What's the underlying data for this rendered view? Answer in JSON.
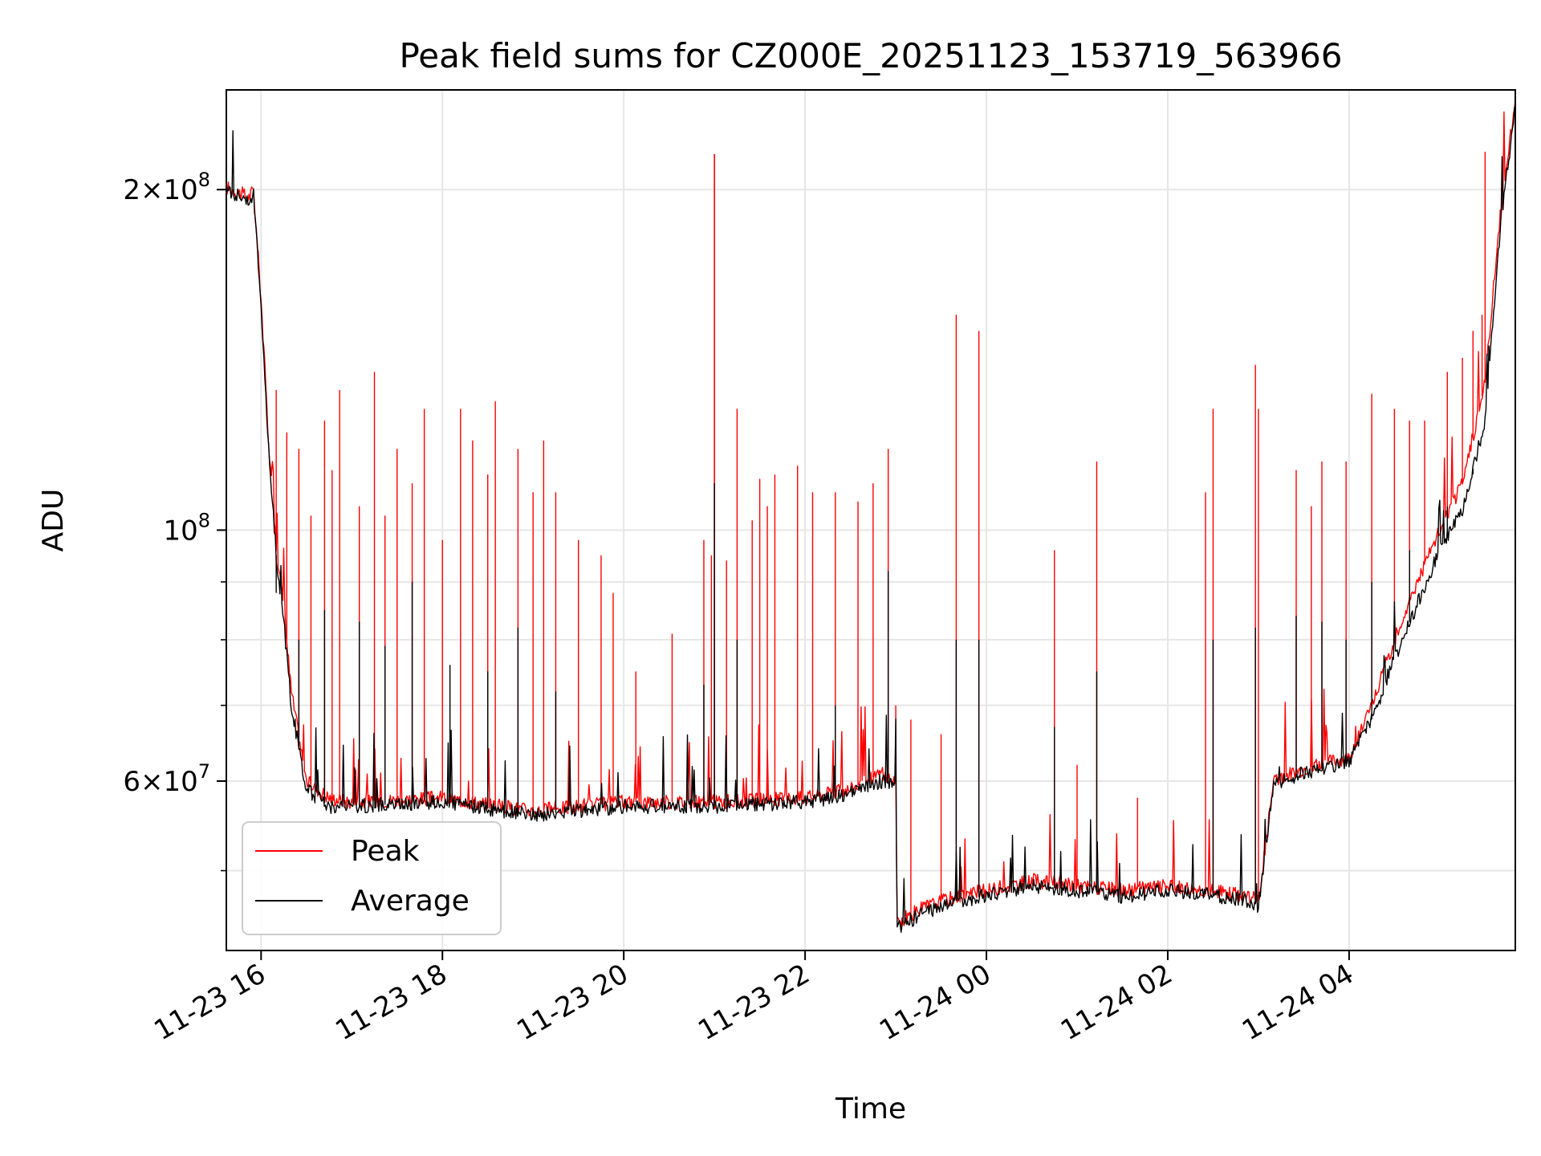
{
  "chart_data": {
    "type": "line",
    "title": "Peak field sums for CZ000E_20251123_153719_563966",
    "xlabel": "Time",
    "ylabel": "ADU",
    "yscale": "log",
    "grid": true,
    "legend_location": "lower-left",
    "xlim": [
      "2025-11-23T15:37",
      "2025-11-24T05:50"
    ],
    "ylim": [
      42500000,
      245000000
    ],
    "x_ticks": [
      "2025-11-23T16:00",
      "2025-11-23T18:00",
      "2025-11-23T20:00",
      "2025-11-23T22:00",
      "2025-11-24T00:00",
      "2025-11-24T02:00",
      "2025-11-24T04:00"
    ],
    "x_tick_labels": [
      "11-23 16",
      "11-23 18",
      "11-23 20",
      "11-23 22",
      "11-24 00",
      "11-24 02",
      "11-24 04"
    ],
    "y_major_ticks": [
      60000000,
      100000000,
      200000000
    ],
    "y_tick_labels": [
      {
        "mantissa": "6",
        "exponent": "7"
      },
      {
        "mantissa": "",
        "exponent": "8"
      },
      {
        "mantissa": "2",
        "exponent": "8"
      }
    ],
    "y_minor_ticks": [
      50000000,
      70000000,
      80000000,
      90000000
    ],
    "series": [
      {
        "name": "Peak",
        "color": "#ff0000",
        "x": [
          "2025-11-23T15:37",
          "2025-11-23T15:52",
          "2025-11-23T15:55",
          "2025-11-23T16:00",
          "2025-11-23T16:05",
          "2025-11-23T16:10",
          "2025-11-23T16:15",
          "2025-11-23T16:20",
          "2025-11-23T16:30",
          "2025-11-23T16:45",
          "2025-11-23T17:00",
          "2025-11-23T18:00",
          "2025-11-23T19:00",
          "2025-11-23T20:00",
          "2025-11-23T21:00",
          "2025-11-23T22:00",
          "2025-11-23T22:30",
          "2025-11-23T22:50",
          "2025-11-23T23:00",
          "2025-11-23T23:01",
          "2025-11-23T23:20",
          "2025-11-23T23:40",
          "2025-11-24T00:00",
          "2025-11-24T00:30",
          "2025-11-24T01:00",
          "2025-11-24T01:30",
          "2025-11-24T02:00",
          "2025-11-24T02:30",
          "2025-11-24T02:55",
          "2025-11-24T03:00",
          "2025-11-24T03:10",
          "2025-11-24T03:30",
          "2025-11-24T04:00",
          "2025-11-24T04:15",
          "2025-11-24T04:30",
          "2025-11-24T04:45",
          "2025-11-24T05:00",
          "2025-11-24T05:15",
          "2025-11-24T05:30",
          "2025-11-24T05:40",
          "2025-11-24T05:50"
        ],
        "y": [
          201000000,
          197000000,
          200000000,
          160000000,
          120000000,
          97000000,
          85000000,
          72000000,
          60000000,
          58000000,
          57500000,
          58000000,
          56500000,
          57500000,
          57500000,
          58000000,
          59000000,
          61000000,
          60000000,
          45000000,
          46500000,
          47500000,
          48000000,
          49000000,
          48500000,
          48000000,
          48500000,
          48000000,
          47500000,
          47000000,
          60000000,
          61500000,
          63000000,
          70000000,
          80000000,
          90000000,
          100000000,
          110000000,
          135000000,
          190000000,
          240000000
        ],
        "spikes": [
          [
            "2025-11-23T16:10",
            133000000
          ],
          [
            "2025-11-23T16:17",
            122000000
          ],
          [
            "2025-11-23T16:25",
            118000000
          ],
          [
            "2025-11-23T16:33",
            103000000
          ],
          [
            "2025-11-23T16:42",
            125000000
          ],
          [
            "2025-11-23T16:47",
            113000000
          ],
          [
            "2025-11-23T16:52",
            133000000
          ],
          [
            "2025-11-23T17:05",
            105000000
          ],
          [
            "2025-11-23T17:15",
            138000000
          ],
          [
            "2025-11-23T17:22",
            103000000
          ],
          [
            "2025-11-23T17:30",
            118000000
          ],
          [
            "2025-11-23T17:40",
            110000000
          ],
          [
            "2025-11-23T17:48",
            128000000
          ],
          [
            "2025-11-23T18:00",
            98000000
          ],
          [
            "2025-11-23T18:12",
            128000000
          ],
          [
            "2025-11-23T18:20",
            120000000
          ],
          [
            "2025-11-23T18:30",
            112000000
          ],
          [
            "2025-11-23T18:35",
            130000000
          ],
          [
            "2025-11-23T18:50",
            118000000
          ],
          [
            "2025-11-23T19:00",
            108000000
          ],
          [
            "2025-11-23T19:07",
            120000000
          ],
          [
            "2025-11-23T19:15",
            108000000
          ],
          [
            "2025-11-23T19:30",
            98000000
          ],
          [
            "2025-11-23T19:45",
            95000000
          ],
          [
            "2025-11-23T19:53",
            88000000
          ],
          [
            "2025-11-23T20:08",
            75000000
          ],
          [
            "2025-11-23T20:32",
            81000000
          ],
          [
            "2025-11-23T20:53",
            98000000
          ],
          [
            "2025-11-23T20:58",
            95000000
          ],
          [
            "2025-11-23T21:08",
            94000000
          ],
          [
            "2025-11-23T21:15",
            128000000
          ],
          [
            "2025-11-23T21:25",
            102000000
          ],
          [
            "2025-11-23T21:30",
            111000000
          ],
          [
            "2025-11-23T21:35",
            105000000
          ],
          [
            "2025-11-23T21:40",
            112000000
          ],
          [
            "2025-11-23T21:55",
            114000000
          ],
          [
            "2025-11-23T22:05",
            108000000
          ],
          [
            "2025-11-23T22:20",
            108000000
          ],
          [
            "2025-11-23T22:35",
            106000000
          ],
          [
            "2025-11-23T22:45",
            110000000
          ],
          [
            "2025-11-23T22:55",
            118000000
          ],
          [
            "2025-11-23T23:00",
            70000000
          ],
          [
            "2025-11-23T23:10",
            68000000
          ],
          [
            "2025-11-23T23:30",
            66000000
          ],
          [
            "2025-11-23T23:40",
            155000000
          ],
          [
            "2025-11-23T23:55",
            150000000
          ],
          [
            "2025-11-24T00:45",
            96000000
          ],
          [
            "2025-11-24T01:00",
            62000000
          ],
          [
            "2025-11-24T01:13",
            115000000
          ],
          [
            "2025-11-24T01:40",
            58000000
          ],
          [
            "2025-11-24T02:25",
            108000000
          ],
          [
            "2025-11-24T02:30",
            128000000
          ],
          [
            "2025-11-24T02:58",
            140000000
          ],
          [
            "2025-11-24T03:00",
            128000000
          ],
          [
            "2025-11-24T03:25",
            113000000
          ],
          [
            "2025-11-24T03:35",
            105000000
          ],
          [
            "2025-11-24T03:42",
            115000000
          ],
          [
            "2025-11-24T03:58",
            115000000
          ],
          [
            "2025-11-24T04:15",
            132000000
          ],
          [
            "2025-11-24T04:30",
            128000000
          ],
          [
            "2025-11-24T04:40",
            125000000
          ],
          [
            "2025-11-24T04:50",
            125000000
          ],
          [
            "2025-11-24T05:05",
            138000000
          ],
          [
            "2025-11-24T05:15",
            142000000
          ],
          [
            "2025-11-24T05:22",
            150000000
          ],
          [
            "2025-11-24T05:28",
            155000000
          ],
          [
            "2025-11-24T05:30",
            216000000
          ]
        ],
        "peak_spike": [
          "2025-11-23T21:00",
          215000000
        ]
      },
      {
        "name": "Average",
        "color": "#000000",
        "x": [
          "2025-11-23T15:37",
          "2025-11-23T15:52",
          "2025-11-23T15:55",
          "2025-11-23T16:00",
          "2025-11-23T16:05",
          "2025-11-23T16:10",
          "2025-11-23T16:15",
          "2025-11-23T16:20",
          "2025-11-23T16:30",
          "2025-11-23T16:45",
          "2025-11-23T17:00",
          "2025-11-23T18:00",
          "2025-11-23T19:00",
          "2025-11-23T20:00",
          "2025-11-23T21:00",
          "2025-11-23T22:00",
          "2025-11-23T22:30",
          "2025-11-23T22:50",
          "2025-11-23T23:00",
          "2025-11-23T23:01",
          "2025-11-23T23:20",
          "2025-11-23T23:40",
          "2025-11-24T00:00",
          "2025-11-24T00:30",
          "2025-11-24T01:00",
          "2025-11-24T01:30",
          "2025-11-24T02:00",
          "2025-11-24T02:30",
          "2025-11-24T02:55",
          "2025-11-24T03:00",
          "2025-11-24T03:10",
          "2025-11-24T03:30",
          "2025-11-24T04:00",
          "2025-11-24T04:15",
          "2025-11-24T04:30",
          "2025-11-24T04:45",
          "2025-11-24T05:00",
          "2025-11-24T05:15",
          "2025-11-24T05:30",
          "2025-11-24T05:40",
          "2025-11-24T05:50"
        ],
        "y": [
          200000000,
          196000000,
          198000000,
          158000000,
          118000000,
          95000000,
          83000000,
          70000000,
          59000000,
          57000000,
          57000000,
          57500000,
          56000000,
          57000000,
          57000000,
          57500000,
          58500000,
          60000000,
          59500000,
          44500000,
          46000000,
          47000000,
          47500000,
          48500000,
          48000000,
          47500000,
          48000000,
          47500000,
          47000000,
          46500000,
          59500000,
          61000000,
          62500000,
          68000000,
          77000000,
          86000000,
          96000000,
          104000000,
          125000000,
          185000000,
          238000000
        ],
        "spikes": [
          [
            "2025-11-23T16:10",
            88000000
          ],
          [
            "2025-11-23T16:25",
            80000000
          ],
          [
            "2025-11-23T16:42",
            85000000
          ],
          [
            "2025-11-23T17:05",
            83000000
          ],
          [
            "2025-11-23T17:22",
            79000000
          ],
          [
            "2025-11-23T17:40",
            90000000
          ],
          [
            "2025-11-23T18:05",
            76000000
          ],
          [
            "2025-11-23T18:30",
            75000000
          ],
          [
            "2025-11-23T18:50",
            82000000
          ],
          [
            "2025-11-23T19:15",
            72000000
          ],
          [
            "2025-11-23T20:53",
            73000000
          ],
          [
            "2025-11-23T21:00",
            110000000
          ],
          [
            "2025-11-23T21:15",
            80000000
          ],
          [
            "2025-11-23T22:20",
            70000000
          ],
          [
            "2025-11-23T22:55",
            92000000
          ],
          [
            "2025-11-23T23:40",
            80000000
          ],
          [
            "2025-11-23T23:55",
            80000000
          ],
          [
            "2025-11-24T00:45",
            67000000
          ],
          [
            "2025-11-24T01:13",
            75000000
          ],
          [
            "2025-11-24T02:30",
            80000000
          ],
          [
            "2025-11-24T02:58",
            82000000
          ],
          [
            "2025-11-24T03:25",
            84000000
          ],
          [
            "2025-11-24T03:42",
            83000000
          ],
          [
            "2025-11-24T03:58",
            80000000
          ],
          [
            "2025-11-24T04:15",
            90000000
          ],
          [
            "2025-11-24T04:40",
            96000000
          ],
          [
            "2025-11-24T05:05",
            105000000
          ],
          [
            "2025-11-24T05:22",
            112000000
          ]
        ]
      }
    ]
  }
}
